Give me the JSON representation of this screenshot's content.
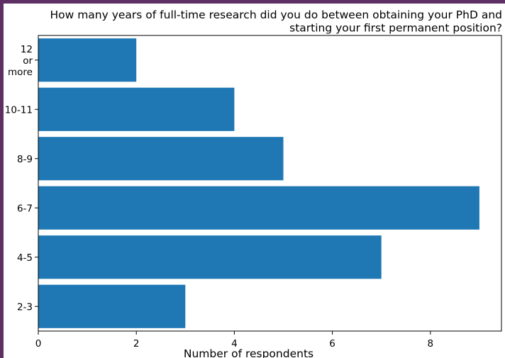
{
  "chart_data": {
    "type": "bar",
    "orientation": "horizontal",
    "title_lines": [
      "How many years of full-time research did you do between obtaining your PhD and",
      "starting your first permanent position?"
    ],
    "xlabel": "Number of respondents",
    "ylabel": "",
    "categories": [
      [
        "2-3"
      ],
      [
        "4-5"
      ],
      [
        "6-7"
      ],
      [
        "8-9"
      ],
      [
        "10-11"
      ],
      [
        "12",
        "or",
        "more"
      ]
    ],
    "values": [
      3,
      7,
      9,
      5,
      4,
      2
    ],
    "xlim": [
      0,
      9.45
    ],
    "xticks": [
      0,
      2,
      4,
      6,
      8
    ],
    "bar_color": "#1f77b4",
    "grid": false,
    "legend": "none"
  }
}
